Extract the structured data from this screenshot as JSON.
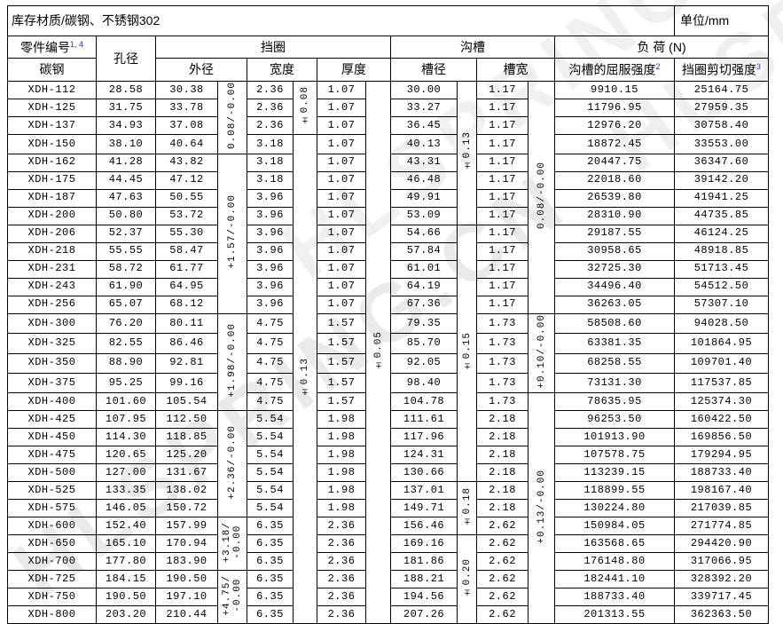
{
  "watermark": "HLSPRING.CN",
  "title": {
    "left": "库存材质/碳钢、不锈钢302",
    "right": "单位/mm"
  },
  "header": {
    "part_no": "零件编号",
    "part_no_sup": "1, 4",
    "part_no_material": "碳钢",
    "bore": "孔径",
    "ring_group": "挡圈",
    "groove_group": "沟槽",
    "load_group": "负  荷 (N)",
    "od": "外径",
    "width": "宽度",
    "thickness": "厚度",
    "groove_dia": "槽径",
    "groove_width": "槽宽",
    "yield_strength": "沟槽的屈服强度",
    "yield_sup": "2",
    "shear_strength": "挡圈剪切强度",
    "shear_sup": "3"
  },
  "columns": [
    "part_number",
    "bore_diameter",
    "outer_diameter",
    "ring_width",
    "ring_thickness",
    "groove_diameter",
    "groove_width",
    "groove_yield_load_N",
    "ring_shear_load_N"
  ],
  "rows": [
    [
      "XDH-112",
      "28.58",
      "30.38",
      "2.36",
      "1.07",
      "30.00",
      "1.17",
      "9910.15",
      "25164.75"
    ],
    [
      "XDH-125",
      "31.75",
      "33.78",
      "2.36",
      "1.07",
      "33.27",
      "1.17",
      "11796.95",
      "27959.35"
    ],
    [
      "XDH-137",
      "34.93",
      "37.08",
      "2.36",
      "1.07",
      "36.45",
      "1.17",
      "12976.20",
      "30758.40"
    ],
    [
      "XDH-150",
      "38.10",
      "40.64",
      "3.18",
      "1.07",
      "40.13",
      "1.17",
      "18872.45",
      "33553.00"
    ],
    [
      "XDH-162",
      "41.28",
      "43.82",
      "3.18",
      "1.07",
      "43.31",
      "1.17",
      "20447.75",
      "36347.60"
    ],
    [
      "XDH-175",
      "44.45",
      "47.12",
      "3.18",
      "1.07",
      "46.48",
      "1.17",
      "22018.60",
      "39142.20"
    ],
    [
      "XDH-187",
      "47.63",
      "50.55",
      "3.96",
      "1.07",
      "49.91",
      "1.17",
      "26539.80",
      "41941.25"
    ],
    [
      "XDH-200",
      "50.80",
      "53.72",
      "3.96",
      "1.07",
      "53.09",
      "1.17",
      "28310.90",
      "44735.85"
    ],
    [
      "XDH-206",
      "52.37",
      "55.30",
      "3.96",
      "1.07",
      "54.66",
      "1.17",
      "29187.55",
      "46124.25"
    ],
    [
      "XDH-218",
      "55.55",
      "58.47",
      "3.96",
      "1.07",
      "57.84",
      "1.17",
      "30958.65",
      "48918.85"
    ],
    [
      "XDH-231",
      "58.72",
      "61.77",
      "3.96",
      "1.07",
      "61.01",
      "1.17",
      "32725.30",
      "51713.45"
    ],
    [
      "XDH-243",
      "61.90",
      "64.95",
      "3.96",
      "1.07",
      "64.19",
      "1.17",
      "34496.40",
      "54512.50"
    ],
    [
      "XDH-256",
      "65.07",
      "68.12",
      "3.96",
      "1.07",
      "67.36",
      "1.17",
      "36263.05",
      "57307.10"
    ],
    [
      "XDH-300",
      "76.20",
      "80.11",
      "4.75",
      "1.57",
      "79.35",
      "1.73",
      "58508.60",
      "94028.50"
    ],
    [
      "XDH-325",
      "82.55",
      "86.46",
      "4.75",
      "1.57",
      "85.70",
      "1.73",
      "63381.35",
      "101864.95"
    ],
    [
      "XDH-350",
      "88.90",
      "92.81",
      "4.75",
      "1.57",
      "92.05",
      "1.73",
      "68258.55",
      "109701.40"
    ],
    [
      "XDH-375",
      "95.25",
      "99.16",
      "4.75",
      "1.57",
      "98.40",
      "1.73",
      "73131.30",
      "117537.85"
    ],
    [
      "XDH-400",
      "101.60",
      "105.54",
      "4.75",
      "1.57",
      "104.78",
      "1.73",
      "78635.95",
      "125374.30"
    ],
    [
      "XDH-425",
      "107.95",
      "112.50",
      "5.54",
      "1.98",
      "111.61",
      "2.18",
      "96253.50",
      "160422.50"
    ],
    [
      "XDH-450",
      "114.30",
      "118.85",
      "5.54",
      "1.98",
      "117.96",
      "2.18",
      "101913.90",
      "169856.50"
    ],
    [
      "XDH-475",
      "120.65",
      "125.20",
      "5.54",
      "1.98",
      "124.31",
      "2.18",
      "107578.75",
      "179294.95"
    ],
    [
      "XDH-500",
      "127.00",
      "131.67",
      "5.54",
      "1.98",
      "130.66",
      "2.18",
      "113239.15",
      "188733.40"
    ],
    [
      "XDH-525",
      "133.35",
      "138.02",
      "5.54",
      "1.98",
      "137.01",
      "2.18",
      "118899.55",
      "198167.40"
    ],
    [
      "XDH-575",
      "146.05",
      "150.72",
      "5.54",
      "1.98",
      "149.71",
      "2.18",
      "130224.80",
      "217039.85"
    ],
    [
      "XDH-600",
      "152.40",
      "157.99",
      "6.35",
      "2.36",
      "156.46",
      "2.62",
      "150984.05",
      "271774.85"
    ],
    [
      "XDH-650",
      "165.10",
      "170.94",
      "6.35",
      "2.36",
      "169.16",
      "2.62",
      "163568.65",
      "294420.90"
    ],
    [
      "XDH-700",
      "177.80",
      "183.90",
      "6.35",
      "2.36",
      "181.86",
      "2.62",
      "176148.80",
      "317066.95"
    ],
    [
      "XDH-725",
      "184.15",
      "190.50",
      "6.35",
      "2.36",
      "188.21",
      "2.62",
      "182441.10",
      "328392.20"
    ],
    [
      "XDH-750",
      "190.50",
      "197.10",
      "6.35",
      "2.36",
      "194.56",
      "2.62",
      "188733.40",
      "339717.45"
    ],
    [
      "XDH-800",
      "203.20",
      "210.44",
      "6.35",
      "2.36",
      "207.26",
      "2.62",
      "201313.55",
      "362363.50"
    ]
  ],
  "tolerances": {
    "od": [
      {
        "rows": [
          1,
          4
        ],
        "label": "0.08/-0.00"
      },
      {
        "rows": [
          5,
          13
        ],
        "label": "+1.57/-0.00"
      },
      {
        "rows": [
          14,
          18
        ],
        "label": "+1.98/-0.00"
      },
      {
        "rows": [
          19,
          24
        ],
        "label": "+2.36/-0.00"
      },
      {
        "rows": [
          25,
          27
        ],
        "label": "+3.18/\n-0.00"
      },
      {
        "rows": [
          28,
          30
        ],
        "label": "+4.75/\n-0.00"
      }
    ],
    "width": [
      {
        "rows": [
          1,
          3
        ],
        "label": "±0.08"
      },
      {
        "rows": [
          4,
          30
        ],
        "label": "±0.13"
      }
    ],
    "thickness": [
      {
        "rows": [
          1,
          30
        ],
        "label": "±0.05"
      }
    ],
    "groove_dia": [
      {
        "rows": [
          1,
          8
        ],
        "label": "±0.13"
      },
      {
        "rows": [
          9,
          22
        ],
        "label": "±0.15"
      },
      {
        "rows": [
          23,
          25
        ],
        "label": "±0.18"
      },
      {
        "rows": [
          26,
          30
        ],
        "label": "±0.20"
      }
    ],
    "groove_width": [
      {
        "rows": [
          1,
          13
        ],
        "label": "0.08/-0.00"
      },
      {
        "rows": [
          14,
          17
        ],
        "label": "+0.10/-0.00"
      },
      {
        "rows": [
          18,
          30
        ],
        "label": "+0.13/-0.00"
      }
    ]
  }
}
